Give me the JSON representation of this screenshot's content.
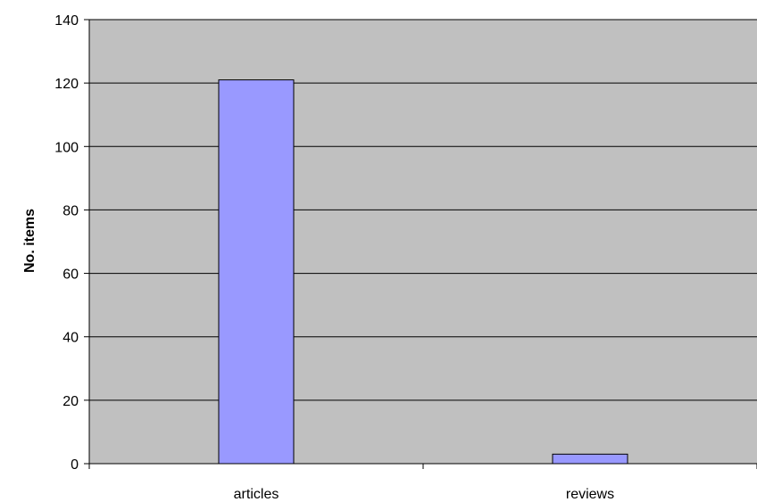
{
  "chart_data": {
    "type": "bar",
    "title": "",
    "xlabel": "",
    "ylabel": "No. items",
    "categories": [
      "articles",
      "reviews"
    ],
    "series": [
      {
        "values": [
          121,
          3
        ]
      }
    ],
    "ylim": [
      0,
      140
    ],
    "yticks": [
      0,
      20,
      40,
      60,
      80,
      100,
      120,
      140
    ],
    "grid": true,
    "legend": "none",
    "colors": {
      "plot_background": "#c0c0c0",
      "bar_fill": "#9999ff",
      "bar_stroke": "#000000",
      "gridline": "#000000"
    }
  }
}
